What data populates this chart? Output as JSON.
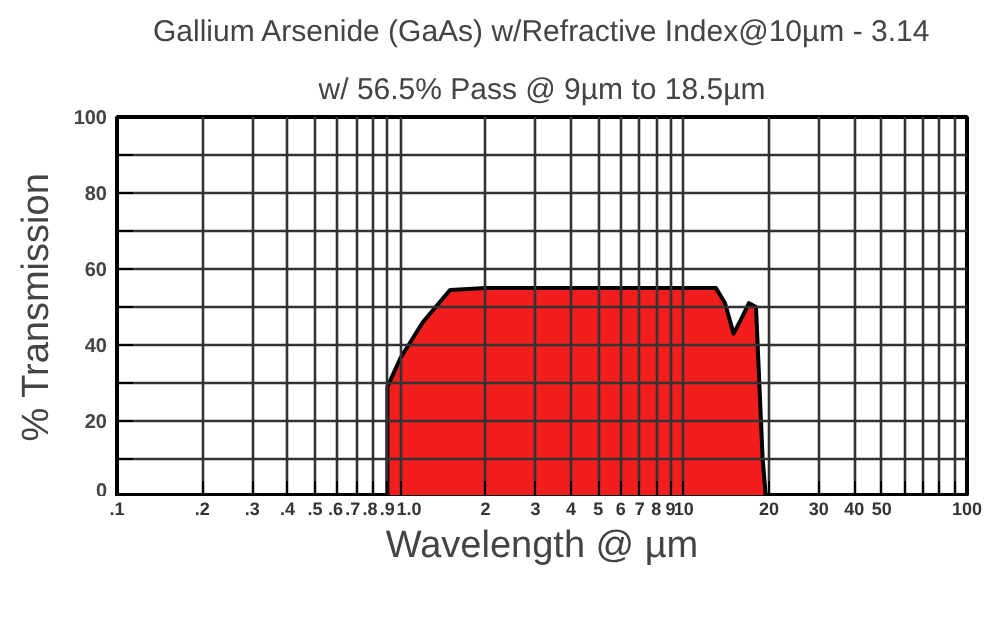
{
  "chart_data": {
    "type": "area",
    "title": "Gallium Arsenide (GaAs) w/Refractive Index@10µm - 3.14",
    "subtitle": "w/ 56.5% Pass @ 9µm to 18.5µm",
    "xlabel": "Wavelength @ µm",
    "ylabel": "% Transmission",
    "log": "x",
    "x": [
      0.9,
      0.9,
      1.0,
      1.2,
      1.5,
      2,
      5,
      10,
      13,
      14,
      15,
      16,
      17,
      18,
      19,
      19.5
    ],
    "series": [
      {
        "color": "#f21d1d",
        "values": [
          0,
          29,
          36.5,
          46,
          54.5,
          55,
          55,
          55,
          55,
          51,
          43,
          47,
          51,
          50,
          10,
          0
        ]
      }
    ],
    "xlim": [
      0.1,
      100
    ],
    "ylim": [
      0,
      100
    ],
    "xticks": [
      {
        "value": 0.1,
        "label": ".1"
      },
      {
        "value": 0.2,
        "label": ".2"
      },
      {
        "value": 0.3,
        "label": ".3"
      },
      {
        "value": 0.4,
        "label": ".4"
      },
      {
        "value": 0.5,
        "label": ".5"
      },
      {
        "value": 0.6,
        "label": ".6"
      },
      {
        "value": 0.7,
        "label": ".7"
      },
      {
        "value": 0.8,
        "label": ".8"
      },
      {
        "value": 0.9,
        "label": ".9"
      },
      {
        "value": 1,
        "label": "1.0"
      },
      2,
      3,
      4,
      5,
      6,
      7,
      8,
      9,
      10,
      20,
      30,
      40,
      50,
      {
        "value": 60,
        "label": null
      },
      {
        "value": 70,
        "label": null
      },
      {
        "value": 80,
        "label": null
      },
      {
        "value": 90,
        "label": null
      },
      100
    ],
    "yticks": [
      0,
      {
        "value": 10,
        "label": null
      },
      20,
      {
        "value": 30,
        "label": null
      },
      40,
      {
        "value": 50,
        "label": null
      },
      60,
      {
        "value": 70,
        "label": null
      },
      80,
      {
        "value": 90,
        "label": null
      },
      100
    ],
    "grid": true
  }
}
